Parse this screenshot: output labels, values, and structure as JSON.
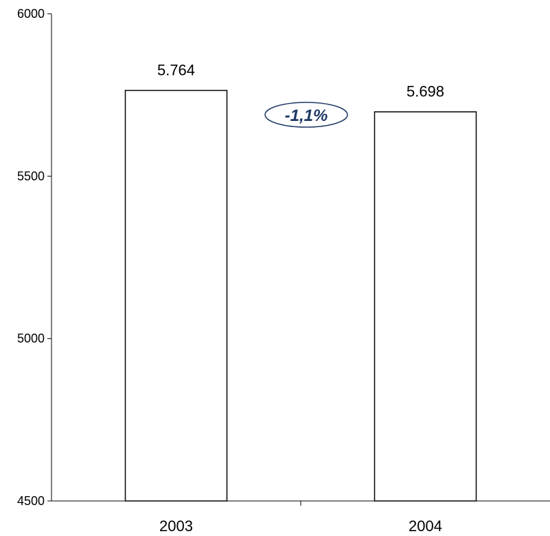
{
  "chart_data": {
    "type": "bar",
    "title": "",
    "xlabel": "",
    "ylabel": "",
    "categories": [
      "2003",
      "2004"
    ],
    "values": [
      5764,
      5698
    ],
    "value_labels": [
      "5.764",
      "5.698"
    ],
    "ylim": [
      4500,
      6000
    ],
    "yticks": [
      4500,
      5000,
      5500,
      6000
    ],
    "grid": false,
    "legend": "none",
    "bar_fill": "#ffffff",
    "bar_stroke": "#000000",
    "annotation": {
      "text": "-1,1%",
      "color": "#1f3864"
    }
  }
}
